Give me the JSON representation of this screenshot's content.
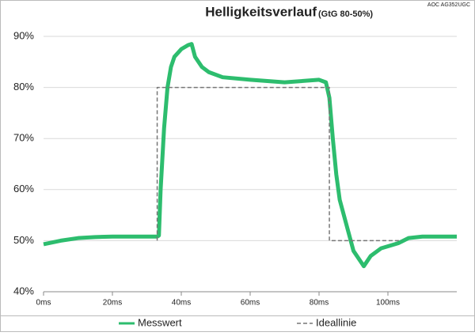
{
  "chart_data": {
    "type": "line",
    "title": "Helligkeitsverlauf",
    "subtitle": "(GtG 80-50%)",
    "annotation": "AOC AG352UGC",
    "xlim": [
      0,
      120
    ],
    "ylim": [
      40,
      90
    ],
    "xticks": [
      {
        "value": 0,
        "label": "0ms"
      },
      {
        "value": 20,
        "label": "20ms"
      },
      {
        "value": 40,
        "label": "40ms"
      },
      {
        "value": 60,
        "label": "60ms"
      },
      {
        "value": 80,
        "label": "80ms"
      },
      {
        "value": 100,
        "label": "100ms"
      }
    ],
    "yticks": [
      {
        "value": 40,
        "label": "40%"
      },
      {
        "value": 50,
        "label": "50%"
      },
      {
        "value": 60,
        "label": "60%"
      },
      {
        "value": 70,
        "label": "70%"
      },
      {
        "value": 80,
        "label": "80%"
      },
      {
        "value": 90,
        "label": "90%"
      }
    ],
    "grid": true,
    "legend": "bottom",
    "series": [
      {
        "name": "Messwert",
        "color": "#2dbd6e",
        "dashed": false,
        "x": [
          0,
          5,
          10,
          15,
          20,
          25,
          30,
          33,
          33.5,
          34,
          35,
          36,
          37,
          38,
          40,
          42,
          43,
          44,
          46,
          48,
          52,
          60,
          70,
          80,
          82,
          83,
          84,
          85,
          86,
          88,
          90,
          92,
          93,
          95,
          98,
          103,
          106,
          110,
          120
        ],
        "values": [
          49.3,
          50,
          50.5,
          50.7,
          50.8,
          50.8,
          50.8,
          50.8,
          51,
          60,
          72,
          80,
          84,
          86,
          87.5,
          88.3,
          88.5,
          86,
          84,
          83,
          82,
          81.5,
          81,
          81.5,
          81,
          78,
          70,
          63,
          58,
          53,
          48,
          46,
          45,
          47,
          48.5,
          49.5,
          50.5,
          50.8,
          50.8
        ]
      },
      {
        "name": "Ideallinie",
        "color": "#777777",
        "dashed": true,
        "x": [
          33,
          33,
          83,
          83,
          104
        ],
        "values": [
          50,
          80,
          80,
          50,
          50
        ]
      }
    ]
  }
}
